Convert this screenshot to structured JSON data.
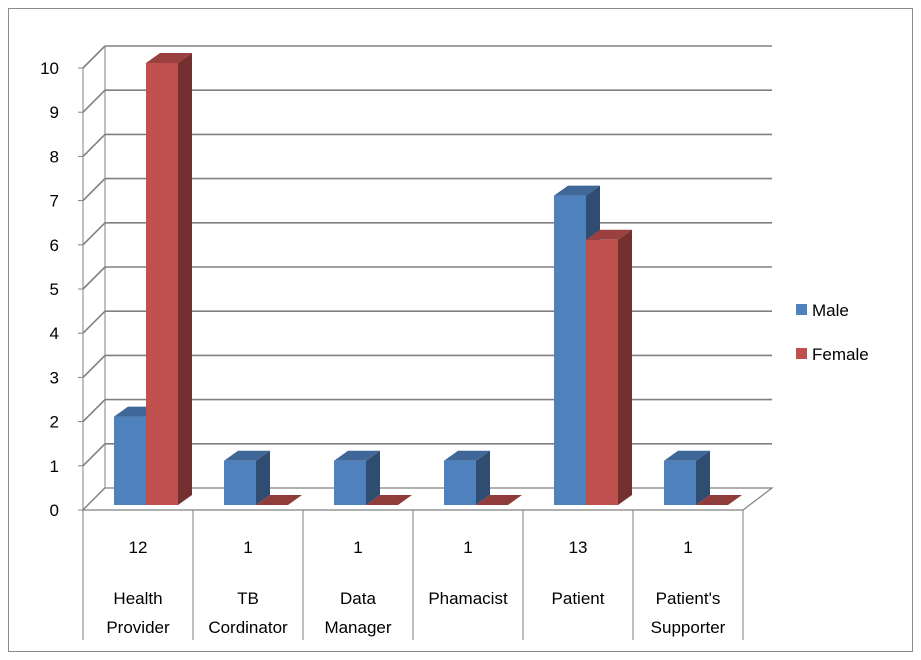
{
  "chart_data": {
    "type": "bar",
    "title": "",
    "xlabel": "",
    "ylabel": "",
    "ylim": [
      0,
      10
    ],
    "yticks": [
      0,
      1,
      2,
      3,
      4,
      5,
      6,
      7,
      8,
      9,
      10
    ],
    "categories": [
      {
        "count": "12",
        "lines": [
          "Health",
          "Provider"
        ]
      },
      {
        "count": "1",
        "lines": [
          "TB",
          "Cordinator"
        ]
      },
      {
        "count": "1",
        "lines": [
          "Data",
          "Manager"
        ]
      },
      {
        "count": "1",
        "lines": [
          "Phamacist"
        ]
      },
      {
        "count": "13",
        "lines": [
          "Patient"
        ]
      },
      {
        "count": "1",
        "lines": [
          "Patient's",
          "Supporter"
        ]
      }
    ],
    "series": [
      {
        "name": "Male",
        "color": "#4f81bd",
        "values": [
          2,
          1,
          1,
          1,
          7,
          1
        ]
      },
      {
        "name": "Female",
        "color": "#c0504d",
        "values": [
          10,
          0,
          0,
          0,
          6,
          0
        ]
      }
    ],
    "grid": true,
    "legend_position": "right",
    "style": "3d-column"
  }
}
